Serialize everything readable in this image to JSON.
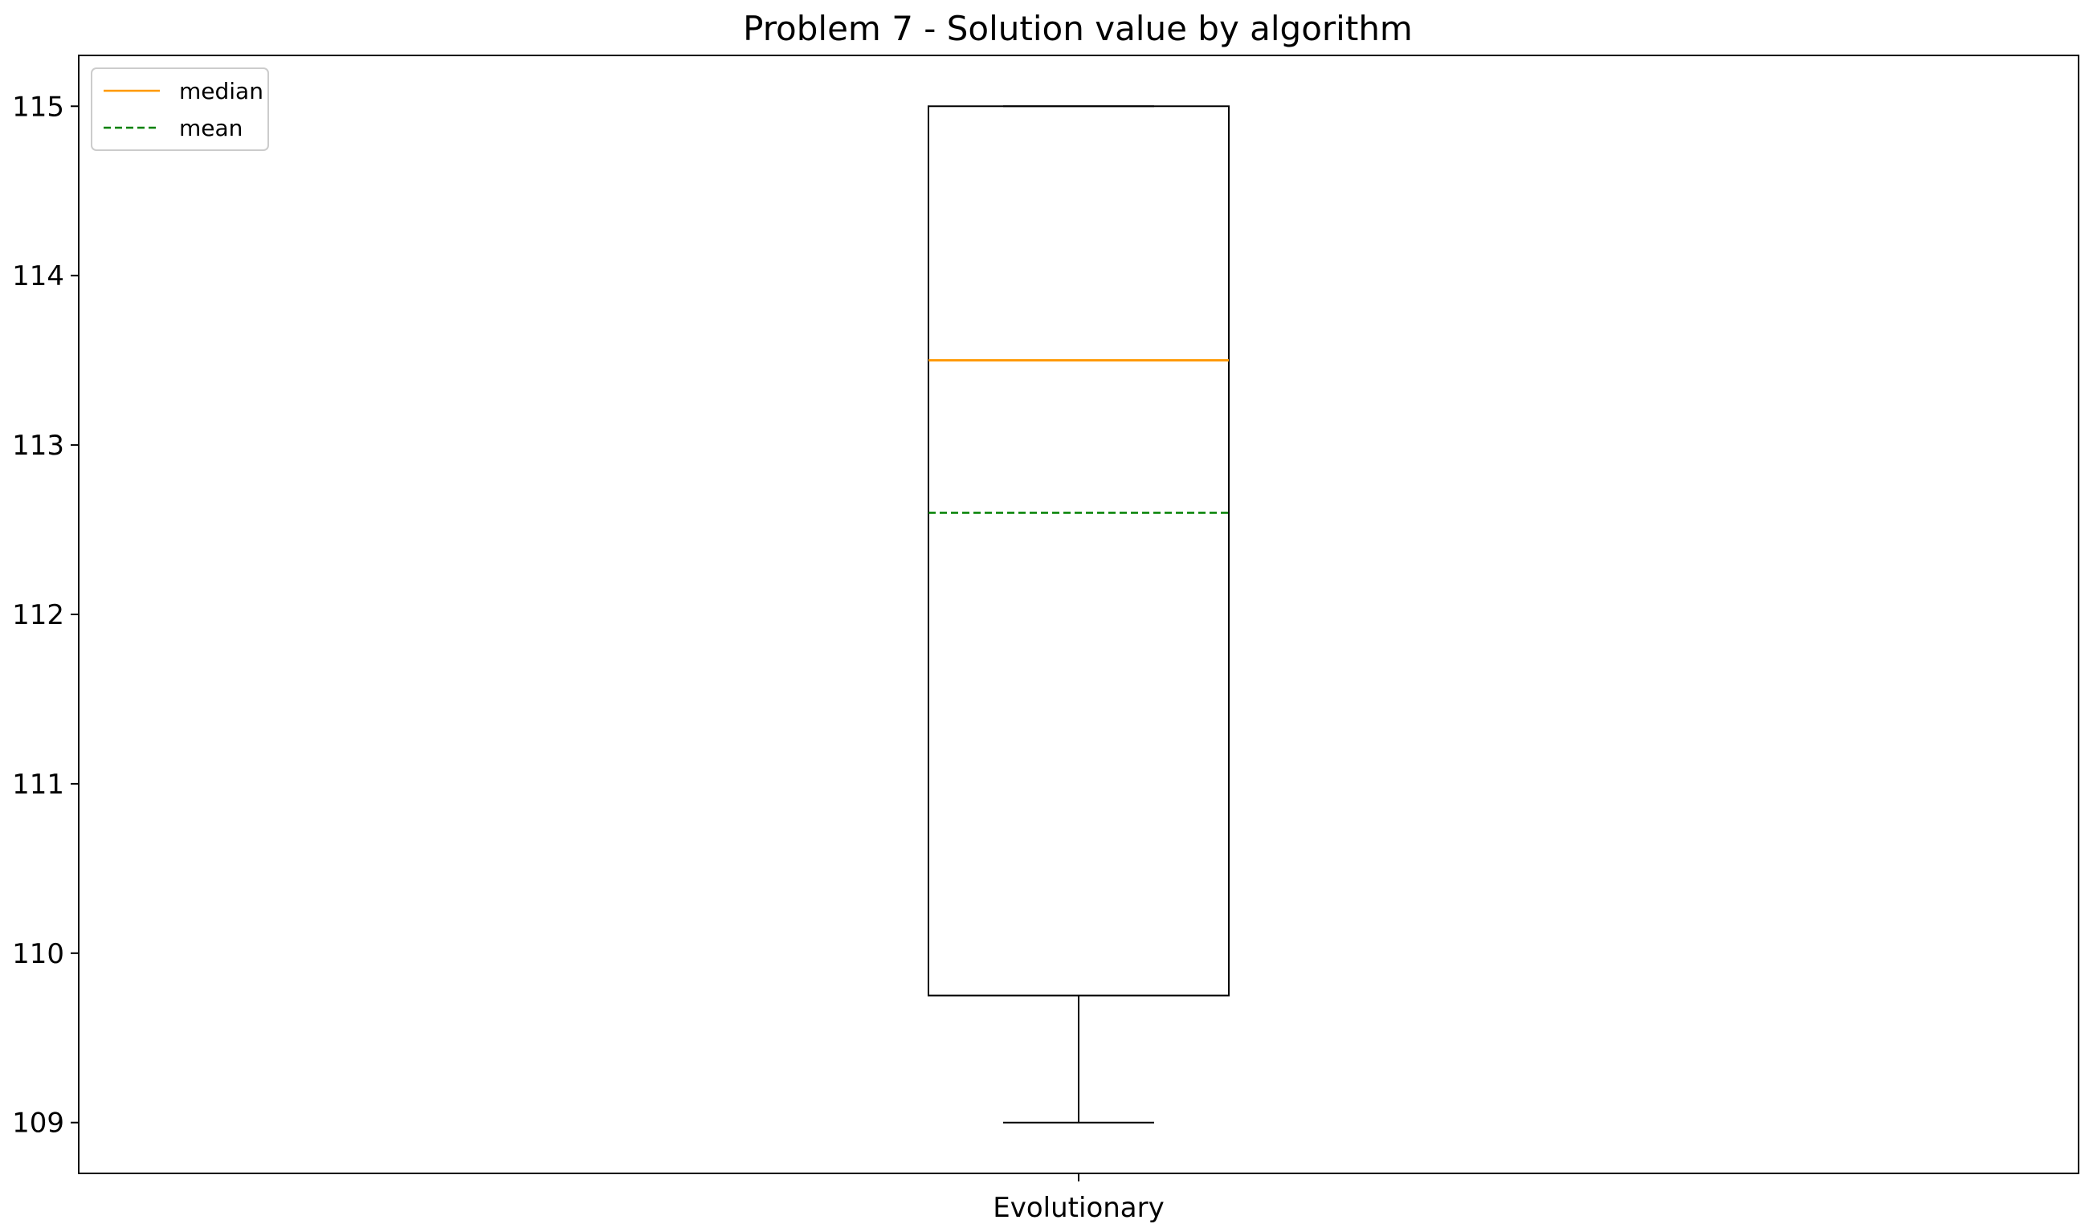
{
  "chart_data": {
    "type": "box",
    "title": "Problem 7 - Solution value by algorithm",
    "xlabel": "",
    "ylabel": "",
    "categories": [
      "Evolutionary"
    ],
    "boxes": [
      {
        "category": "Evolutionary",
        "whisker_low": 109,
        "q1": 109.75,
        "median": 113.5,
        "mean": 112.6,
        "q3": 115,
        "whisker_high": 115
      }
    ],
    "ylim": [
      108.7,
      115.3
    ],
    "yticks": [
      109,
      110,
      111,
      112,
      113,
      114,
      115
    ],
    "ytick_labels": [
      "109",
      "110",
      "111",
      "112",
      "113",
      "114",
      "115"
    ],
    "grid": false,
    "legend": {
      "position": "top-left",
      "entries": [
        {
          "label": "median",
          "color": "#ff9900",
          "style": "solid"
        },
        {
          "label": "mean",
          "color": "#008000",
          "style": "dashed"
        }
      ]
    },
    "colors": {
      "box": "#000000",
      "median": "#ff9900",
      "mean": "#008000"
    }
  }
}
